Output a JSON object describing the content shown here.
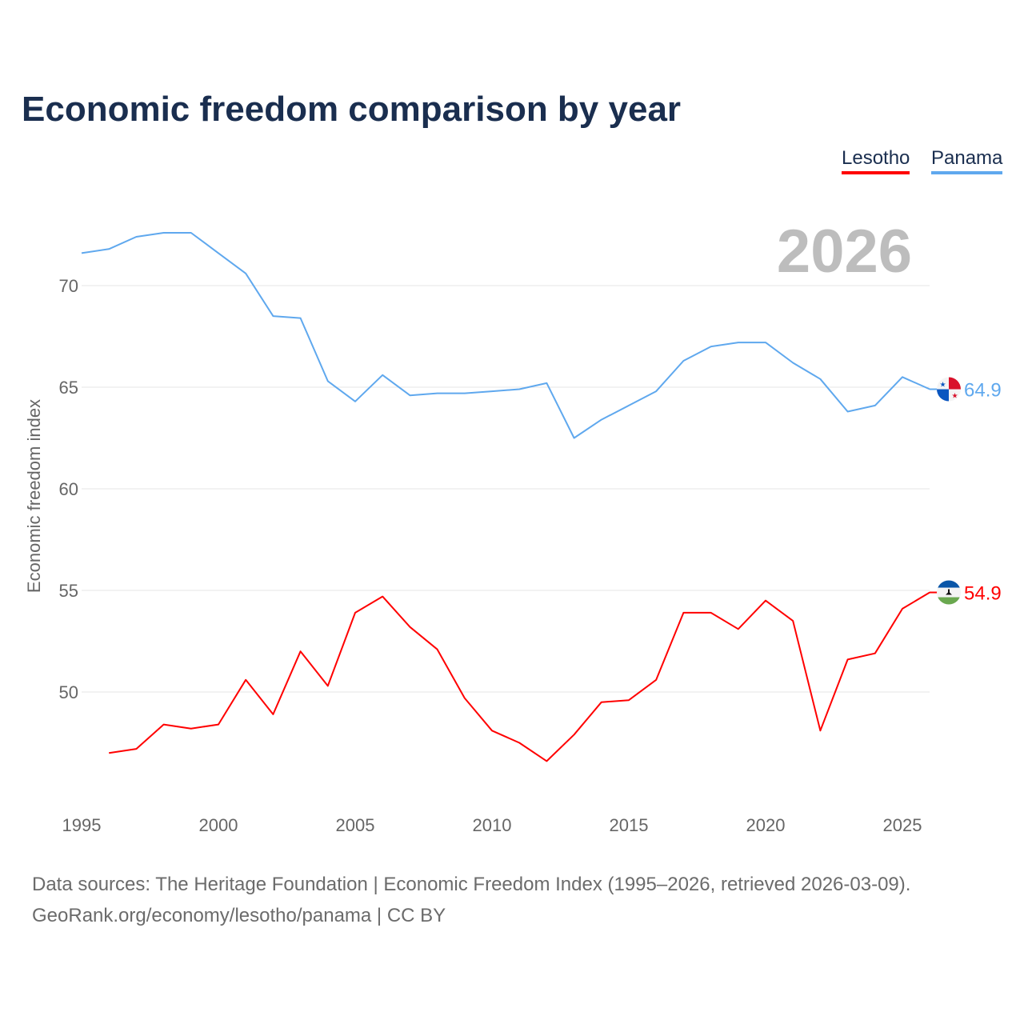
{
  "chart_data": {
    "type": "line",
    "title": "Economic freedom comparison by year",
    "xlabel": "",
    "ylabel": "Economic freedom index",
    "xlim": [
      1995,
      2026
    ],
    "ylim": [
      45,
      73
    ],
    "yticks": [
      50,
      55,
      60,
      65,
      70
    ],
    "xticks": [
      1995,
      2000,
      2005,
      2010,
      2015,
      2020,
      2025
    ],
    "grid": true,
    "legend_placement": "top-right",
    "year_label": "2026",
    "series": [
      {
        "name": "Lesotho",
        "color": "#ff0000",
        "end_label": "54.9",
        "x": [
          1996,
          1997,
          1998,
          1999,
          2000,
          2001,
          2002,
          2003,
          2004,
          2005,
          2006,
          2007,
          2008,
          2009,
          2010,
          2011,
          2012,
          2013,
          2014,
          2015,
          2016,
          2017,
          2018,
          2019,
          2020,
          2021,
          2022,
          2023,
          2024,
          2025,
          2026
        ],
        "values": [
          47.0,
          47.2,
          48.4,
          48.2,
          48.4,
          50.6,
          48.9,
          52.0,
          50.3,
          53.9,
          54.7,
          53.2,
          52.1,
          49.7,
          48.1,
          47.5,
          46.6,
          47.9,
          49.5,
          49.6,
          50.6,
          53.9,
          53.9,
          53.1,
          54.5,
          53.5,
          48.1,
          51.6,
          51.9,
          54.1,
          54.9
        ]
      },
      {
        "name": "Panama",
        "color": "#5fa8ee",
        "end_label": "64.9",
        "x": [
          1995,
          1996,
          1997,
          1998,
          1999,
          2000,
          2001,
          2002,
          2003,
          2004,
          2005,
          2006,
          2007,
          2008,
          2009,
          2010,
          2011,
          2012,
          2013,
          2014,
          2015,
          2016,
          2017,
          2018,
          2019,
          2020,
          2021,
          2022,
          2023,
          2024,
          2025,
          2026
        ],
        "values": [
          71.6,
          71.8,
          72.4,
          72.6,
          72.6,
          71.6,
          70.6,
          68.5,
          68.4,
          65.3,
          64.3,
          65.6,
          64.6,
          64.7,
          64.7,
          64.8,
          64.9,
          65.2,
          62.5,
          63.4,
          64.1,
          64.8,
          66.3,
          67.0,
          67.2,
          67.2,
          66.2,
          65.4,
          63.8,
          64.1,
          65.5,
          64.9
        ]
      }
    ]
  },
  "source_line1": "Data sources: The Heritage Foundation | Economic Freedom Index (1995–2026, retrieved 2026-03-09).",
  "source_line2": "GeoRank.org/economy/lesotho/panama | CC BY"
}
